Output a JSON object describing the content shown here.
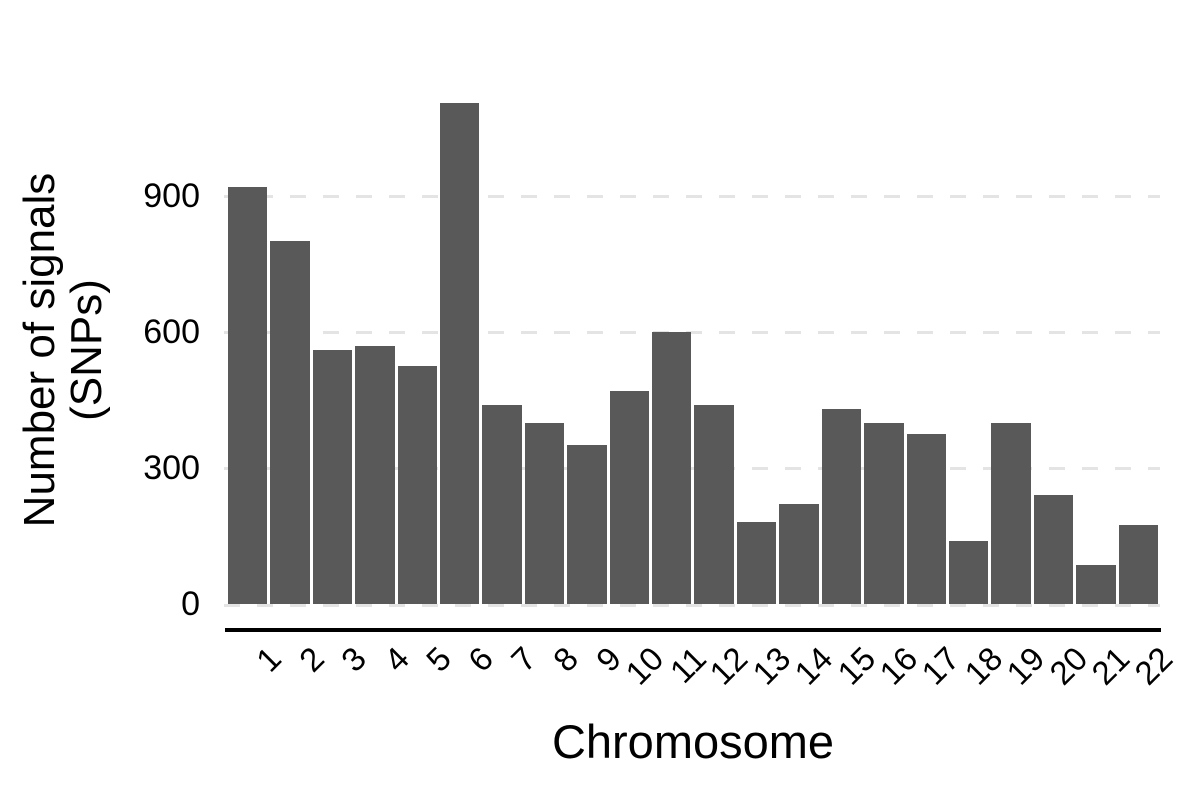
{
  "figure": {
    "background": "#ffffff"
  },
  "chart_data": {
    "type": "bar",
    "title": "",
    "xlabel": "Chromosome",
    "ylabel": "Number of signals (SNPs)",
    "ylabel_line1": "Number of signals",
    "ylabel_line2": "(SNPs)",
    "categories": [
      "1",
      "2",
      "3",
      "4",
      "5",
      "6",
      "7",
      "8",
      "9",
      "10",
      "11",
      "12",
      "13",
      "14",
      "15",
      "16",
      "17",
      "18",
      "19",
      "20",
      "21",
      "22"
    ],
    "values": [
      920,
      800,
      560,
      570,
      525,
      1105,
      440,
      400,
      350,
      470,
      600,
      440,
      180,
      220,
      430,
      400,
      375,
      140,
      400,
      240,
      85,
      175
    ],
    "yticks": [
      0,
      300,
      600,
      900
    ],
    "ylim": [
      0,
      1160
    ],
    "grid": "horizontal-dashed",
    "legend": "none",
    "bar_color": "#595959",
    "gridline_color": "#e4e4e4",
    "axis_line_color": "#000000",
    "text_color": "#000000"
  }
}
